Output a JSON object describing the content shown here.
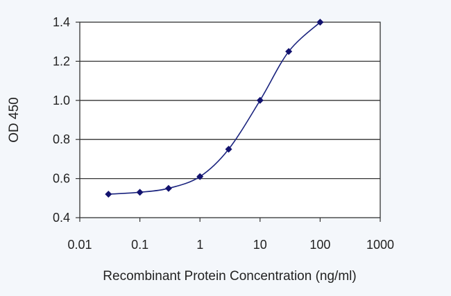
{
  "chart_data": {
    "type": "line",
    "xlabel": "Recombinant Protein Concentration (ng/ml)",
    "ylabel": "OD 450",
    "x_scale": "log",
    "xlim": [
      0.01,
      1000
    ],
    "ylim": [
      0.4,
      1.4
    ],
    "x_ticks": [
      "0.01",
      "0.1",
      "1",
      "10",
      "100",
      "1000"
    ],
    "y_ticks": [
      "0.4",
      "0.6",
      "0.8",
      "1.0",
      "1.2",
      "1.4"
    ],
    "grid": "horizontal",
    "colors": {
      "series": "#1a237e",
      "marker": "#12126e",
      "grid": "#333333",
      "axis": "#333333"
    },
    "series": [
      {
        "x": [
          0.03,
          0.1,
          0.3,
          1,
          3,
          10,
          30,
          100
        ],
        "y": [
          0.52,
          0.53,
          0.55,
          0.61,
          0.75,
          1.0,
          1.25,
          1.4
        ]
      }
    ]
  }
}
